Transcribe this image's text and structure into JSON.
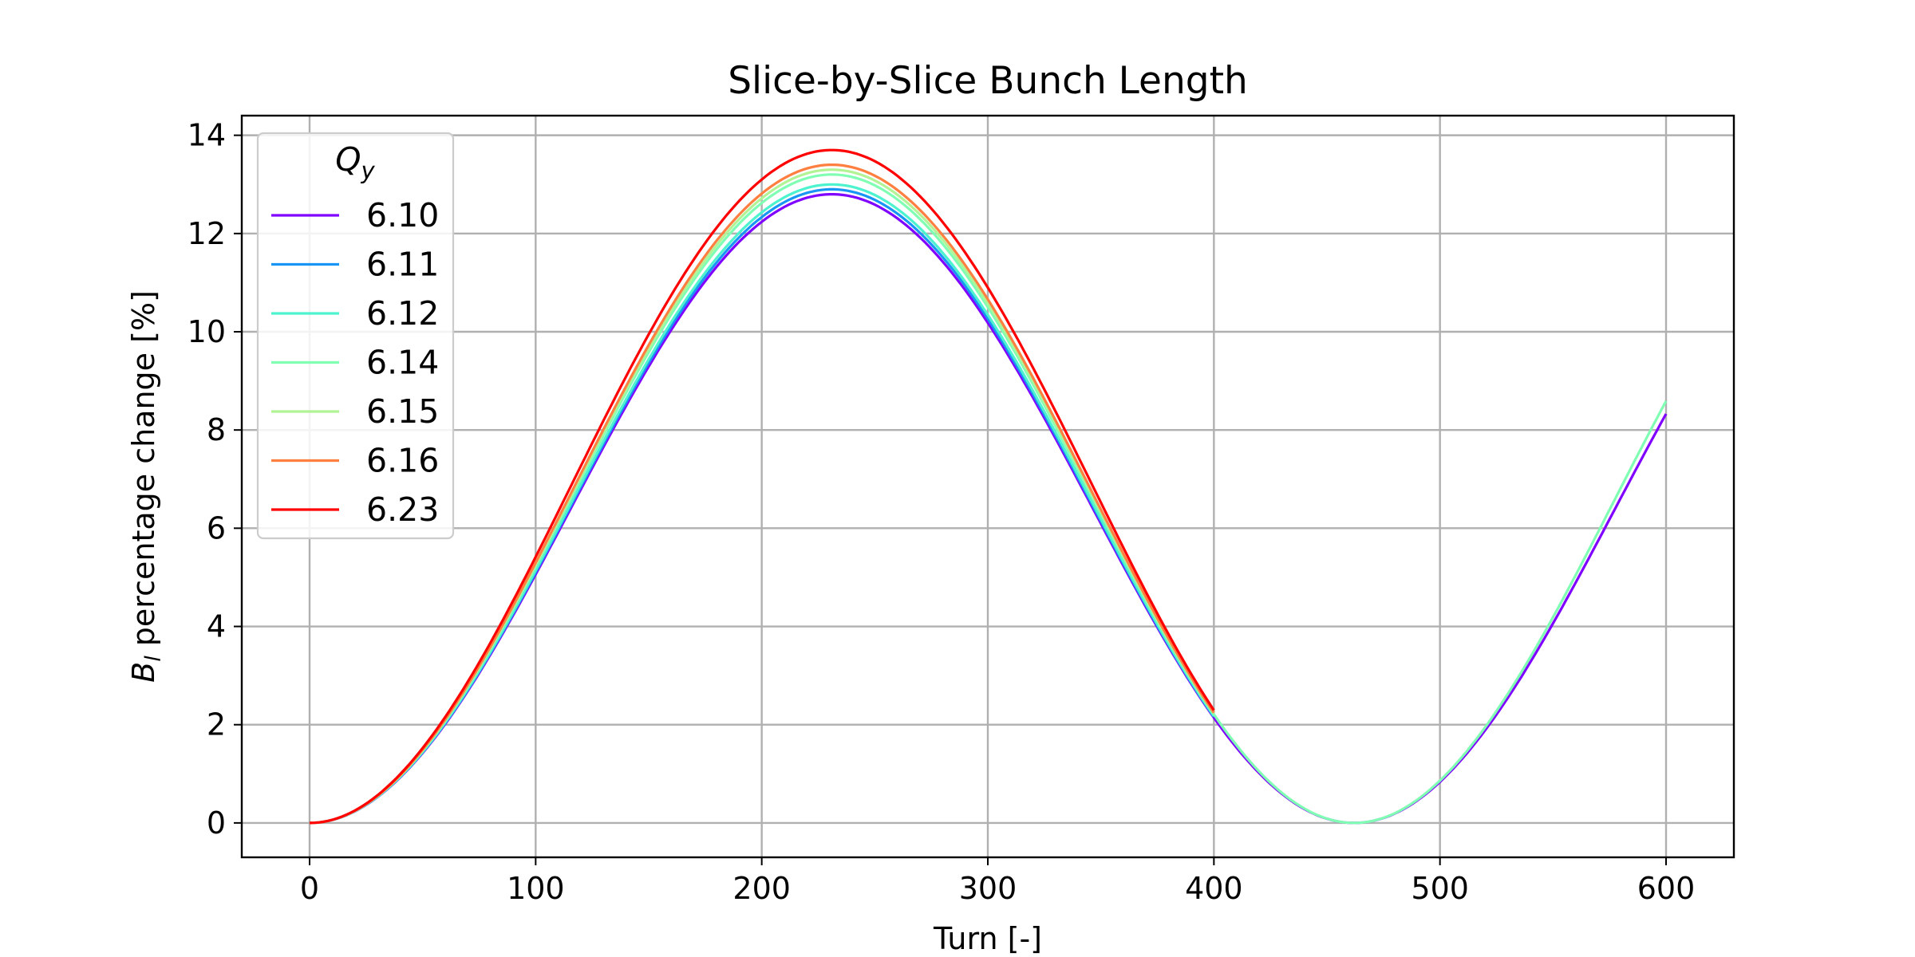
{
  "chart_data": {
    "type": "line",
    "title": "Slice-by-Slice Bunch Length",
    "xlabel": "Turn [-]",
    "ylabel_main": "B",
    "ylabel_sub": "l",
    "ylabel_rest": " percentage change [%]",
    "xlim": [
      -30,
      630
    ],
    "ylim": [
      -0.7,
      14.4
    ],
    "xticks": [
      0,
      100,
      200,
      300,
      400,
      500,
      600
    ],
    "yticks": [
      0,
      2,
      4,
      6,
      8,
      10,
      12,
      14
    ],
    "grid": true,
    "legend": {
      "placement": "upper-left",
      "title_main": "Q",
      "title_sub": "y"
    },
    "series": [
      {
        "name": "6.10",
        "color": "#7f00ff",
        "x_end": 600,
        "peak": 12.8,
        "peak_x": 231,
        "at_end": 9.1
      },
      {
        "name": "6.11",
        "color": "#1996f3",
        "x_end": 400,
        "peak": 12.9,
        "peak_x": 231,
        "at_end": 2.0
      },
      {
        "name": "6.12",
        "color": "#4df3ce",
        "x_end": 400,
        "peak": 13.0,
        "peak_x": 231,
        "at_end": 2.1
      },
      {
        "name": "6.14",
        "color": "#80ffb4",
        "x_end": 600,
        "peak": 13.2,
        "peak_x": 231,
        "at_end": 9.2
      },
      {
        "name": "6.15",
        "color": "#b2f396",
        "x_end": 400,
        "peak": 13.3,
        "peak_x": 231,
        "at_end": 2.2
      },
      {
        "name": "6.16",
        "color": "#ff7f40",
        "x_end": 400,
        "peak": 13.4,
        "peak_x": 231,
        "at_end": 2.4
      },
      {
        "name": "6.23",
        "color": "#ff0000",
        "x_end": 400,
        "peak": 13.7,
        "peak_x": 231,
        "at_end": 2.5
      }
    ]
  }
}
